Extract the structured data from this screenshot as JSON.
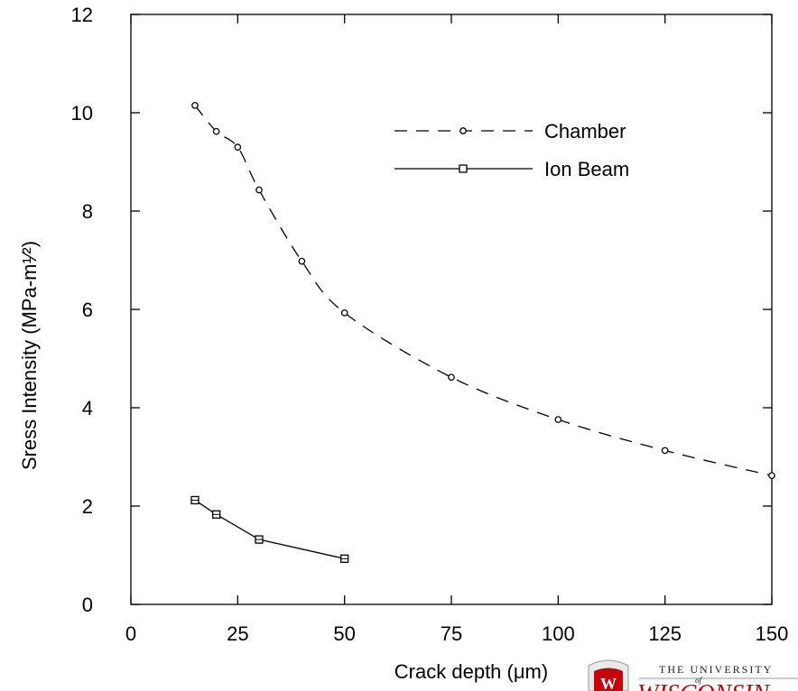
{
  "chart_data": {
    "type": "line",
    "xlabel": "Crack depth (μm)",
    "ylabel": "Sress Intensity (MPa-m¹⁄²)",
    "xlim": [
      0,
      150
    ],
    "ylim": [
      0,
      12
    ],
    "xticks": [
      0,
      25,
      50,
      75,
      100,
      125,
      150
    ],
    "yticks": [
      0,
      2,
      4,
      6,
      8,
      10,
      12
    ],
    "grid": false,
    "legend_position": "top-right",
    "series": [
      {
        "name": "Chamber",
        "line_style": "dashed",
        "marker": "circle",
        "x": [
          15,
          20,
          25,
          30,
          40,
          50,
          75,
          100,
          125,
          150
        ],
        "y": [
          10.15,
          9.62,
          9.3,
          8.43,
          6.98,
          5.93,
          4.62,
          3.76,
          3.13,
          2.62
        ]
      },
      {
        "name": "Ion Beam",
        "line_style": "solid",
        "marker": "square",
        "x": [
          15,
          20,
          30,
          50
        ],
        "y": [
          2.12,
          1.83,
          1.32,
          0.93
        ]
      }
    ]
  },
  "logo": {
    "text_top": "THE UNIVERSITY",
    "text_of": "of",
    "text_main": "WISCONSIN",
    "colors": {
      "primary": "#c5050c"
    }
  }
}
